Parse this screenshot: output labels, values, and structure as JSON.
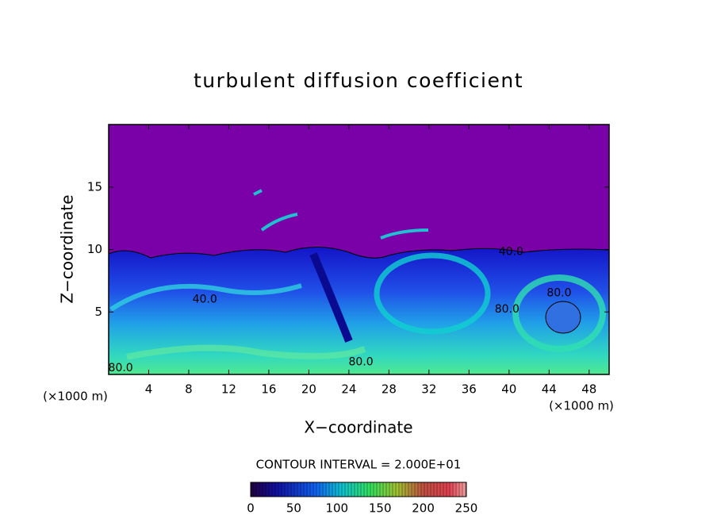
{
  "chart_data": {
    "type": "contour",
    "title": "turbulent diffusion coefficient",
    "xlabel": "X−coordinate",
    "ylabel": "Z−coordinate",
    "xunit": "(×1000 m)",
    "yunit": "(×1000 m)",
    "xlim": [
      0,
      50
    ],
    "ylim": [
      0,
      20
    ],
    "xticks": [
      4,
      8,
      12,
      16,
      20,
      24,
      28,
      32,
      36,
      40,
      44,
      48
    ],
    "yticks": [
      5,
      10,
      15
    ],
    "contour_interval": "CONTOUR INTERVAL = 2.000E+01",
    "colorbar_lim": [
      0,
      250
    ],
    "colorbar_ticks": [
      0,
      50,
      100,
      150,
      200,
      250
    ],
    "contour_labels": [
      {
        "label": "80.0",
        "x": 1.2,
        "z": 0.5
      },
      {
        "label": "40.0",
        "x": 9.6,
        "z": 6.0
      },
      {
        "label": "80.0",
        "x": 25.2,
        "z": 1.0
      },
      {
        "label": "40.0",
        "x": 40.2,
        "z": 9.8
      },
      {
        "label": "80.0",
        "x": 39.8,
        "z": 5.2
      },
      {
        "label": "80.0",
        "x": 45.0,
        "z": 6.5
      }
    ]
  }
}
